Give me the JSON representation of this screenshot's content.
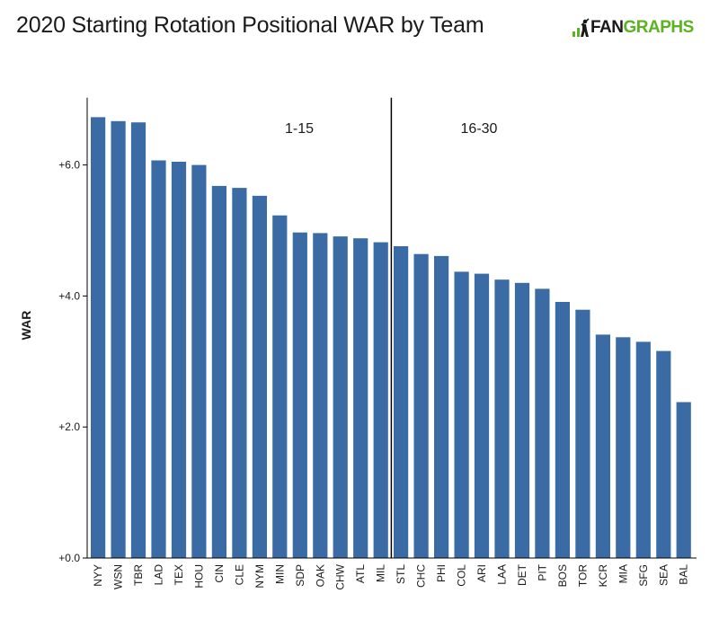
{
  "title": "2020 Starting Rotation Positional WAR by Team",
  "logo": {
    "part1": "FAN",
    "part2": "GRAPHS",
    "brand_green": "#5bb31f"
  },
  "colors": {
    "bar": "#3a6ba5",
    "axis": "#000000",
    "text": "#1a1a1a"
  },
  "chart_data": {
    "type": "bar",
    "title": "2020 Starting Rotation Positional WAR by Team",
    "xlabel": "",
    "ylabel": "WAR",
    "ylim": [
      0,
      7
    ],
    "yticks": [
      0,
      2,
      4,
      6
    ],
    "ytick_labels": [
      "+0.0",
      "+2.0",
      "+4.0",
      "+6.0"
    ],
    "grid": false,
    "categories": [
      "NYY",
      "WSN",
      "TBR",
      "LAD",
      "TEX",
      "HOU",
      "CIN",
      "CLE",
      "NYM",
      "MIN",
      "SDP",
      "OAK",
      "CHW",
      "ATL",
      "MIL",
      "STL",
      "CHC",
      "PHI",
      "COL",
      "ARI",
      "LAA",
      "DET",
      "PIT",
      "BOS",
      "TOR",
      "KCR",
      "MIA",
      "SFG",
      "SEA",
      "BAL"
    ],
    "values": [
      6.73,
      6.67,
      6.65,
      6.07,
      6.05,
      6.0,
      5.68,
      5.65,
      5.53,
      5.23,
      4.97,
      4.96,
      4.91,
      4.88,
      4.82,
      4.76,
      4.64,
      4.61,
      4.37,
      4.34,
      4.25,
      4.2,
      4.11,
      3.91,
      3.79,
      3.41,
      3.37,
      3.3,
      3.16,
      2.38
    ],
    "groups": [
      {
        "label": "1-15",
        "start": 0,
        "end": 14
      },
      {
        "label": "16-30",
        "start": 15,
        "end": 29
      }
    ],
    "divider_after_index": 14
  }
}
